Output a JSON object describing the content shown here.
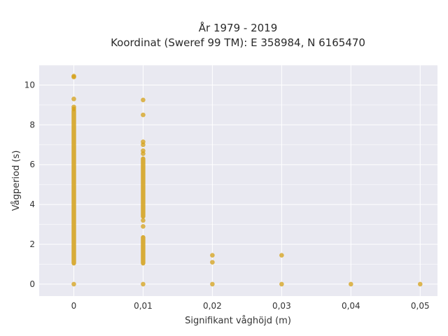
{
  "chart_data": {
    "type": "scatter",
    "title_line1": "År 1979 - 2019",
    "title_line2": "Koordinat (Sweref 99 TM): E 358984, N 6165470",
    "xlabel": "Signifikant våghöjd (m)",
    "ylabel": "Vågperiod (s)",
    "xlim": [
      -0.005,
      0.0525
    ],
    "ylim": [
      -0.6,
      11.0
    ],
    "x_ticks": [
      0,
      0.01,
      0.02,
      0.03,
      0.04,
      0.05
    ],
    "x_tick_labels": [
      "0",
      "0,01",
      "0,02",
      "0,03",
      "0,04",
      "0,05"
    ],
    "y_ticks": [
      0,
      2,
      4,
      6,
      8,
      10
    ],
    "y_tick_labels": [
      "0",
      "2",
      "4",
      "6",
      "8",
      "10"
    ],
    "grid": true,
    "background_color": "#e9e9f1",
    "marker_color": "#d4a017",
    "series": [
      {
        "points": [
          [
            0,
            10.45
          ],
          [
            0,
            10.4
          ],
          [
            0,
            9.3
          ],
          [
            0,
            8.9
          ],
          [
            0,
            8.8
          ],
          [
            0,
            0.0
          ],
          [
            0.01,
            9.25
          ],
          [
            0.01,
            8.5
          ],
          [
            0.01,
            7.15
          ],
          [
            0.01,
            7.0
          ],
          [
            0.01,
            6.7
          ],
          [
            0.01,
            6.55
          ],
          [
            0.01,
            3.2
          ],
          [
            0.01,
            2.9
          ],
          [
            0.01,
            0.0
          ],
          [
            0.02,
            1.45
          ],
          [
            0.02,
            1.1
          ],
          [
            0.02,
            0.0
          ],
          [
            0.03,
            1.45
          ],
          [
            0.03,
            0.0
          ],
          [
            0.04,
            0.0
          ],
          [
            0.05,
            0.0
          ]
        ],
        "dense_ranges": [
          {
            "x": 0,
            "y_min": 1.05,
            "y_max": 8.7
          },
          {
            "x": 0.01,
            "y_min": 3.4,
            "y_max": 6.3
          },
          {
            "x": 0.01,
            "y_min": 1.05,
            "y_max": 2.35
          }
        ]
      }
    ]
  }
}
